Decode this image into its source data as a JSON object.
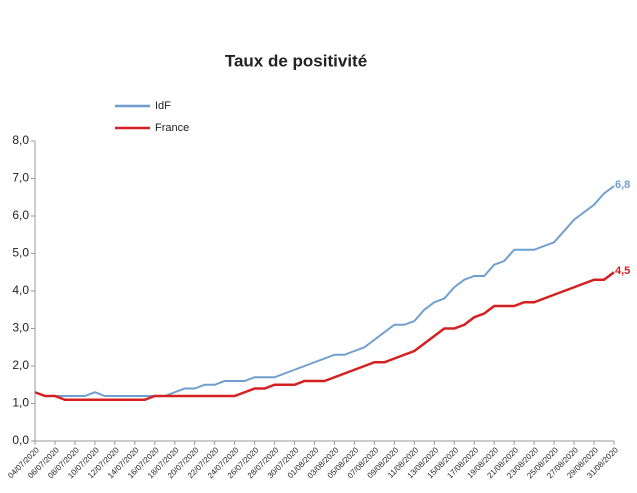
{
  "chart_data": {
    "type": "line",
    "title": "Taux de positivité",
    "categories": [
      "04/07/2020",
      null,
      "06/07/2020",
      null,
      "08/07/2020",
      null,
      "10/07/2020",
      null,
      "12/07/2020",
      null,
      "14/07/2020",
      null,
      "16/07/2020",
      null,
      "18/07/2020",
      null,
      "20/07/2020",
      null,
      "22/07/2020",
      null,
      "24/07/2020",
      null,
      "26/07/2020",
      null,
      "28/07/2020",
      null,
      "30/07/2020",
      null,
      "01/08/2020",
      null,
      "03/08/2020",
      null,
      "05/08/2020",
      null,
      "07/08/2020",
      null,
      "09/08/2020",
      null,
      "11/08/2020",
      null,
      "13/08/2020",
      null,
      "15/08/2020",
      null,
      "17/08/2020",
      null,
      "19/08/2020",
      null,
      "21/08/2020",
      null,
      "23/08/2020",
      null,
      "25/08/2020",
      null,
      "27/08/2020",
      null,
      "29/08/2020",
      null,
      "31/08/2020"
    ],
    "series": [
      {
        "name": "IdF",
        "color": "#6f9fcf",
        "values": [
          1.3,
          1.2,
          1.2,
          1.2,
          1.2,
          1.2,
          1.3,
          1.2,
          1.2,
          1.2,
          1.2,
          1.2,
          1.2,
          1.2,
          1.3,
          1.4,
          1.4,
          1.5,
          1.5,
          1.6,
          1.6,
          1.6,
          1.7,
          1.7,
          1.7,
          1.8,
          1.9,
          2.0,
          2.1,
          2.2,
          2.3,
          2.3,
          2.4,
          2.5,
          2.7,
          2.9,
          3.1,
          3.1,
          3.2,
          3.5,
          3.7,
          3.8,
          4.1,
          4.3,
          4.4,
          4.4,
          4.7,
          4.8,
          5.1,
          5.1,
          5.1,
          5.2,
          5.3,
          5.6,
          5.9,
          6.1,
          6.3,
          6.6,
          6.8
        ],
        "value_labels": [
          null,
          null,
          null,
          null,
          null,
          null,
          null,
          null,
          null,
          null,
          null,
          null,
          null,
          null,
          null,
          null,
          null,
          null,
          null,
          null,
          null,
          null,
          null,
          null,
          null,
          null,
          null,
          null,
          null,
          null,
          null,
          null,
          null,
          null,
          null,
          null,
          null,
          null,
          null,
          null,
          null,
          null,
          null,
          null,
          null,
          null,
          null,
          null,
          null,
          null,
          null,
          null,
          null,
          null,
          null,
          null,
          null,
          null,
          "6,8"
        ]
      },
      {
        "name": "France",
        "color": "#d42020",
        "values": [
          1.3,
          1.2,
          1.2,
          1.1,
          1.1,
          1.1,
          1.1,
          1.1,
          1.1,
          1.1,
          1.1,
          1.1,
          1.2,
          1.2,
          1.2,
          1.2,
          1.2,
          1.2,
          1.2,
          1.2,
          1.2,
          1.3,
          1.4,
          1.4,
          1.5,
          1.5,
          1.5,
          1.6,
          1.6,
          1.6,
          1.7,
          1.8,
          1.9,
          2.0,
          2.1,
          2.1,
          2.2,
          2.3,
          2.4,
          2.6,
          2.8,
          3.0,
          3.0,
          3.1,
          3.3,
          3.4,
          3.6,
          3.6,
          3.6,
          3.7,
          3.7,
          3.8,
          3.9,
          4.0,
          4.1,
          4.2,
          4.3,
          4.3,
          4.5
        ],
        "value_labels": [
          null,
          null,
          null,
          null,
          null,
          null,
          null,
          null,
          null,
          null,
          null,
          null,
          null,
          null,
          null,
          null,
          null,
          null,
          null,
          null,
          null,
          null,
          null,
          null,
          null,
          null,
          null,
          null,
          null,
          null,
          null,
          null,
          null,
          null,
          null,
          null,
          null,
          null,
          null,
          null,
          null,
          null,
          null,
          null,
          null,
          null,
          null,
          null,
          null,
          null,
          null,
          null,
          null,
          null,
          null,
          null,
          null,
          null,
          "4,5"
        ]
      }
    ],
    "ylim": [
      0,
      8
    ],
    "yticks": [
      {
        "value": 0,
        "label": "0,0"
      },
      {
        "value": 1,
        "label": "1,0"
      },
      {
        "value": 2,
        "label": "2,0"
      },
      {
        "value": 3,
        "label": "3,0"
      },
      {
        "value": 4,
        "label": "4,0"
      },
      {
        "value": 5,
        "label": "5,0"
      },
      {
        "value": 6,
        "label": "6,0"
      },
      {
        "value": 7,
        "label": "7,0"
      },
      {
        "value": 8,
        "label": "8,0"
      }
    ],
    "grid": false,
    "legend": "top-left"
  }
}
